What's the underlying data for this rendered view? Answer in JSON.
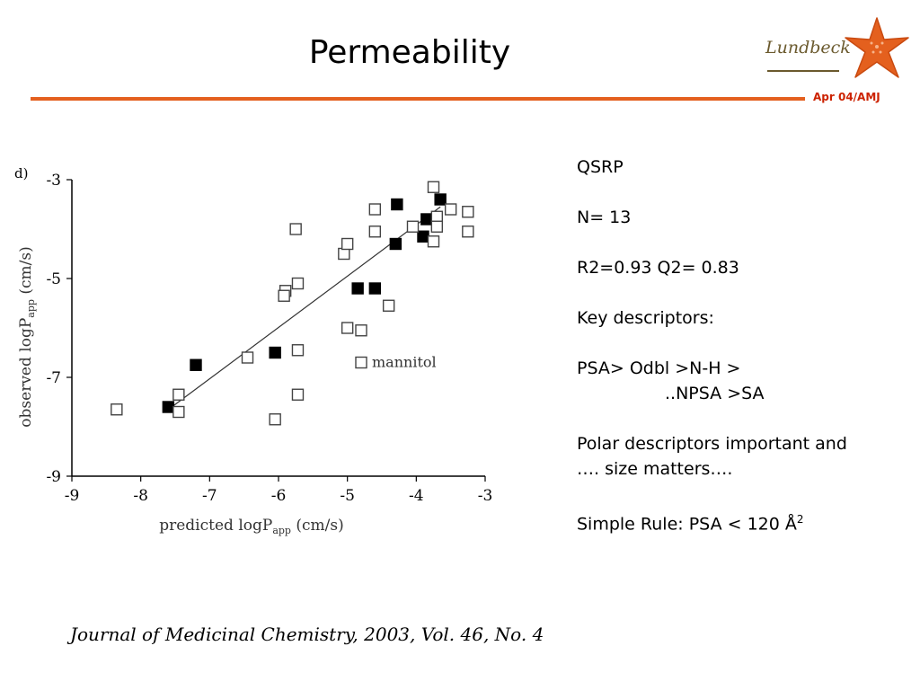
{
  "slide": {
    "title": "Permeability",
    "date_tag": "Apr 04/AMJ",
    "logo": {
      "text": "Lundbeck",
      "icon": "starfish-icon",
      "color": "#e4601e"
    },
    "accent_color": "#e4601e",
    "citation": "Journal of Medicinal Chemistry, 2003, Vol. 46, No. 4"
  },
  "info": {
    "l1": "QSRP",
    "l2": "N= 13",
    "l3": "R2=0.93 Q2= 0.83",
    "l4": "Key descriptors:",
    "l5a": "PSA> Odbl >N-H >",
    "l5b": "..NPSA >SA",
    "l6a": "Polar descriptors important and",
    "l6b": "…. size matters….",
    "l7_prefix": "Simple Rule: PSA < 120 Å",
    "l7_sup": "2"
  },
  "chart_data": {
    "type": "scatter",
    "panel_label": "d)",
    "xlabel": "predicted logP",
    "xlabel_sub": "app",
    "xlabel_unit": " (cm/s)",
    "ylabel": "observed logP",
    "ylabel_sub": "app",
    "ylabel_unit": " (cm/s)",
    "xlim": [
      -9,
      -3
    ],
    "ylim": [
      -9,
      -3
    ],
    "xticks": [
      -9,
      -8,
      -7,
      -6,
      -5,
      -4,
      -3
    ],
    "yticks": [
      -9,
      -7,
      -5,
      -3
    ],
    "annotation": {
      "text": "mannitol",
      "x": -4.8,
      "y": -6.7
    },
    "trendline": {
      "x": [
        -7.55,
        -3.65
      ],
      "y": [
        -7.6,
        -3.55
      ]
    },
    "series": [
      {
        "marker": "filled",
        "points": [
          [
            -7.6,
            -7.6
          ],
          [
            -7.2,
            -6.75
          ],
          [
            -6.05,
            -6.5
          ],
          [
            -4.85,
            -5.2
          ],
          [
            -4.6,
            -5.2
          ],
          [
            -4.3,
            -4.3
          ],
          [
            -4.28,
            -3.5
          ],
          [
            -3.9,
            -4.15
          ],
          [
            -3.85,
            -3.8
          ],
          [
            -3.65,
            -3.4
          ]
        ]
      },
      {
        "marker": "open",
        "points": [
          [
            -8.35,
            -7.65
          ],
          [
            -7.45,
            -7.35
          ],
          [
            -7.45,
            -7.7
          ],
          [
            -6.45,
            -6.6
          ],
          [
            -6.05,
            -7.85
          ],
          [
            -5.9,
            -5.25
          ],
          [
            -5.92,
            -5.35
          ],
          [
            -5.72,
            -5.1
          ],
          [
            -5.72,
            -6.45
          ],
          [
            -5.72,
            -7.35
          ],
          [
            -5.75,
            -4.0
          ],
          [
            -5.05,
            -4.5
          ],
          [
            -5.0,
            -4.3
          ],
          [
            -5.0,
            -6.0
          ],
          [
            -4.8,
            -6.05
          ],
          [
            -4.8,
            -6.7
          ],
          [
            -4.4,
            -5.55
          ],
          [
            -4.6,
            -3.6
          ],
          [
            -4.6,
            -4.05
          ],
          [
            -4.05,
            -3.95
          ],
          [
            -3.75,
            -4.25
          ],
          [
            -3.7,
            -3.75
          ],
          [
            -3.7,
            -3.95
          ],
          [
            -3.75,
            -3.15
          ],
          [
            -3.5,
            -3.6
          ],
          [
            -3.25,
            -3.65
          ],
          [
            -3.25,
            -4.05
          ]
        ]
      }
    ]
  }
}
